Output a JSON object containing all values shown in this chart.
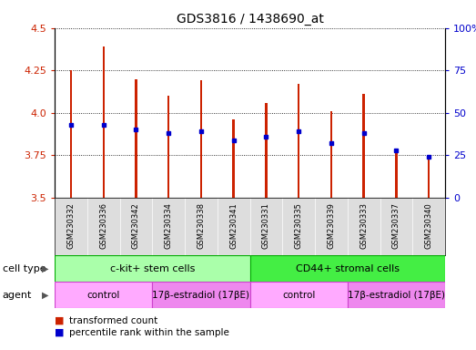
{
  "title": "GDS3816 / 1438690_at",
  "samples": [
    "GSM230332",
    "GSM230336",
    "GSM230342",
    "GSM230334",
    "GSM230338",
    "GSM230341",
    "GSM230331",
    "GSM230335",
    "GSM230339",
    "GSM230333",
    "GSM230337",
    "GSM230340"
  ],
  "bar_tops": [
    4.25,
    4.39,
    4.2,
    4.1,
    4.19,
    3.96,
    4.06,
    4.17,
    4.01,
    4.11,
    3.79,
    3.75
  ],
  "bar_bottoms": [
    3.5,
    3.5,
    3.5,
    3.5,
    3.5,
    3.5,
    3.5,
    3.5,
    3.5,
    3.5,
    3.5,
    3.5
  ],
  "percentile_ranks": [
    43,
    43,
    40,
    38,
    39,
    34,
    36,
    39,
    32,
    38,
    28,
    24
  ],
  "ylim_left": [
    3.5,
    4.5
  ],
  "ylim_right": [
    0,
    100
  ],
  "yticks_left": [
    3.5,
    3.75,
    4.0,
    4.25,
    4.5
  ],
  "yticks_right": [
    0,
    25,
    50,
    75,
    100
  ],
  "ytick_labels_right": [
    "0",
    "25",
    "50",
    "75",
    "100%"
  ],
  "bar_color": "#cc2200",
  "marker_color": "#0000cc",
  "cell_type_groups": [
    {
      "label": "c-kit+ stem cells",
      "start": 0,
      "end": 5,
      "color": "#aaffaa",
      "border": "#00aa00"
    },
    {
      "label": "CD44+ stromal cells",
      "start": 6,
      "end": 11,
      "color": "#44ee44",
      "border": "#00aa00"
    }
  ],
  "agent_groups": [
    {
      "label": "control",
      "start": 0,
      "end": 2,
      "color": "#ffaaff",
      "border": "#cc44cc"
    },
    {
      "label": "17β-estradiol (17βE)",
      "start": 3,
      "end": 5,
      "color": "#ee88ee",
      "border": "#cc44cc"
    },
    {
      "label": "control",
      "start": 6,
      "end": 8,
      "color": "#ffaaff",
      "border": "#cc44cc"
    },
    {
      "label": "17β-estradiol (17βE)",
      "start": 9,
      "end": 11,
      "color": "#ee88ee",
      "border": "#cc44cc"
    }
  ],
  "legend_items": [
    {
      "label": "transformed count",
      "color": "#cc2200"
    },
    {
      "label": "percentile rank within the sample",
      "color": "#0000cc"
    }
  ],
  "background_color": "#ffffff",
  "bar_width": 0.07
}
